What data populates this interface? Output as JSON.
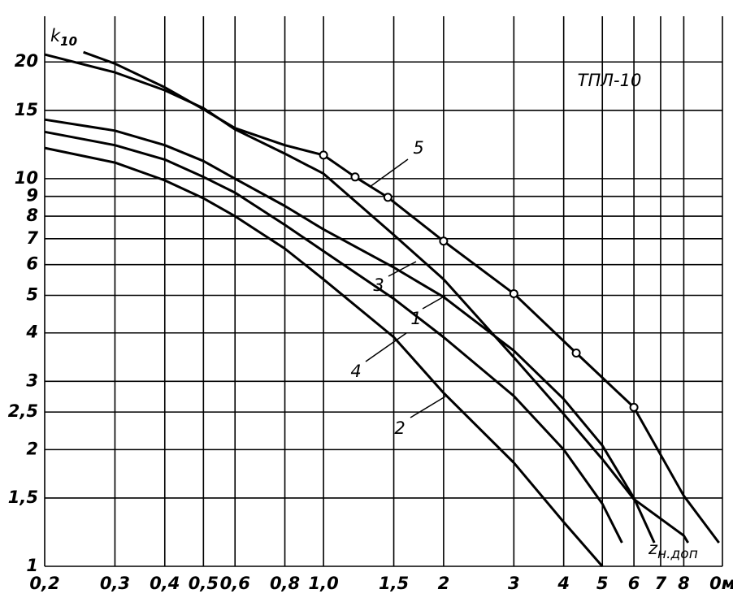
{
  "chart_data": {
    "type": "line",
    "annotation": "ТПЛ-10",
    "ylabel": "k",
    "ylabel_sub": "10",
    "xlabel": "z",
    "xlabel_sub": "н.доп",
    "xscale": "log",
    "yscale": "log",
    "grid": true,
    "xlim": [
      0.2,
      10
    ],
    "ylim": [
      1,
      25
    ],
    "xticks": [
      {
        "value": 0.2,
        "label": "0,2"
      },
      {
        "value": 0.3,
        "label": "0,3"
      },
      {
        "value": 0.4,
        "label": "0,4"
      },
      {
        "value": 0.5,
        "label": "0,5"
      },
      {
        "value": 0.6,
        "label": "0,6"
      },
      {
        "value": 0.8,
        "label": "0,8"
      },
      {
        "value": 1.0,
        "label": "1,0"
      },
      {
        "value": 1.5,
        "label": "1,5"
      },
      2,
      3,
      4,
      5,
      6,
      7,
      8,
      {
        "value": 10,
        "label": "0м"
      }
    ],
    "yticks": [
      1,
      {
        "value": 1.5,
        "label": "1,5"
      },
      2,
      {
        "value": 2.5,
        "label": "2,5"
      },
      3,
      4,
      5,
      6,
      7,
      8,
      9,
      10,
      15,
      20
    ],
    "series": [
      {
        "name": "1",
        "color": "#000000",
        "x": [
          0.2,
          0.3,
          0.4,
          0.5,
          0.6,
          0.8,
          1.0,
          1.5,
          2,
          3,
          4,
          5,
          6,
          6.75
        ],
        "values": [
          14.2,
          13.3,
          12.2,
          11.1,
          10.0,
          8.5,
          7.4,
          5.9,
          4.95,
          3.6,
          2.7,
          2.05,
          1.5,
          1.15
        ]
      },
      {
        "name": "2",
        "color": "#000000",
        "x": [
          0.2,
          0.3,
          0.4,
          0.5,
          0.6,
          0.8,
          1.0,
          1.5,
          2,
          3,
          4,
          5
        ],
        "values": [
          12.0,
          11.0,
          9.9,
          8.9,
          8.0,
          6.6,
          5.5,
          3.9,
          2.8,
          1.85,
          1.3,
          1.0
        ]
      },
      {
        "name": "3",
        "color": "#000000",
        "x": [
          0.2,
          0.3,
          0.4,
          0.5,
          0.6,
          0.8,
          1.0,
          1.5,
          2,
          3,
          4,
          5,
          6,
          8,
          8.2
        ],
        "values": [
          20.9,
          18.8,
          16.9,
          15.2,
          13.4,
          11.6,
          10.3,
          7.16,
          5.5,
          3.46,
          2.47,
          1.89,
          1.49,
          1.2,
          1.15
        ]
      },
      {
        "name": "4",
        "color": "#000000",
        "x": [
          0.2,
          0.3,
          0.4,
          0.5,
          0.6,
          0.8,
          1.0,
          1.5,
          2,
          3,
          4,
          5,
          5.6
        ],
        "values": [
          13.2,
          12.2,
          11.2,
          10.1,
          9.2,
          7.6,
          6.5,
          4.9,
          3.9,
          2.75,
          2.0,
          1.45,
          1.15
        ]
      },
      {
        "name": "5",
        "color": "#000000",
        "x": [
          0.25,
          0.3,
          0.4,
          0.5,
          0.6,
          0.8,
          1.0,
          1.2,
          1.45,
          2,
          3,
          4.3,
          6,
          8,
          9.8
        ],
        "values": [
          21.2,
          19.8,
          17.2,
          15.1,
          13.5,
          12.2,
          11.5,
          10.1,
          8.95,
          6.9,
          5.05,
          3.55,
          2.57,
          1.52,
          1.15
        ]
      },
      {
        "color": "#000000",
        "marker": "circle",
        "x": [
          1.0,
          1.2,
          1.45,
          2,
          3,
          4.3,
          6
        ],
        "values": [
          11.5,
          10.1,
          8.95,
          6.9,
          5.05,
          3.55,
          2.57
        ]
      }
    ]
  }
}
